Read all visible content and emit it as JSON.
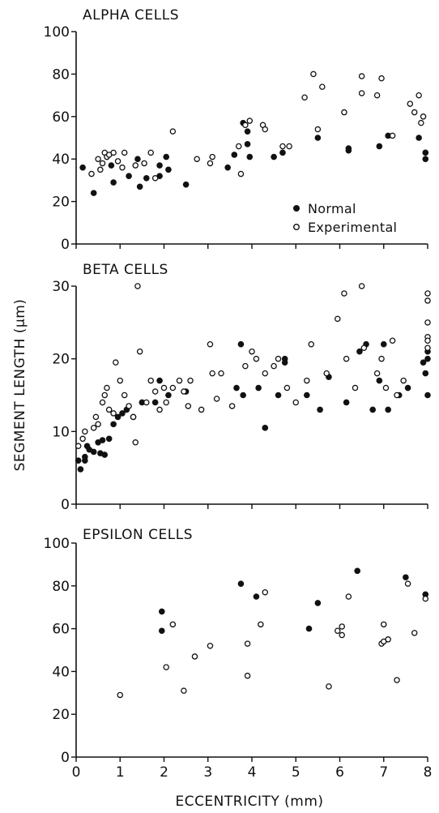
{
  "chart_data": [
    {
      "type": "scatter",
      "title": "ALPHA CELLS",
      "xlim": [
        0,
        8
      ],
      "ylim": [
        0,
        100
      ],
      "yticks": [
        0,
        20,
        40,
        60,
        80,
        100
      ],
      "legend": {
        "placement": "bottom-right",
        "entries": [
          "Normal",
          "Experimental"
        ]
      },
      "series": [
        {
          "name": "Normal",
          "marker": "filled-circle",
          "color": "#111111",
          "points": [
            [
              0.15,
              36
            ],
            [
              0.4,
              24
            ],
            [
              0.8,
              37
            ],
            [
              0.85,
              29
            ],
            [
              1.2,
              32
            ],
            [
              1.4,
              40
            ],
            [
              1.45,
              27
            ],
            [
              1.6,
              31
            ],
            [
              1.9,
              32
            ],
            [
              1.9,
              37
            ],
            [
              2.05,
              41
            ],
            [
              2.1,
              35
            ],
            [
              2.5,
              28
            ],
            [
              3.45,
              36
            ],
            [
              3.6,
              42
            ],
            [
              3.8,
              57
            ],
            [
              3.9,
              53
            ],
            [
              3.9,
              47
            ],
            [
              3.95,
              41
            ],
            [
              4.5,
              41
            ],
            [
              4.7,
              43
            ],
            [
              5.5,
              50
            ],
            [
              6.2,
              44
            ],
            [
              6.2,
              45
            ],
            [
              6.9,
              46
            ],
            [
              7.1,
              51
            ],
            [
              7.8,
              50
            ],
            [
              7.95,
              43
            ],
            [
              7.95,
              40
            ]
          ]
        },
        {
          "name": "Experimental",
          "marker": "open-circle",
          "color": "#111111",
          "points": [
            [
              0.35,
              33
            ],
            [
              0.5,
              40
            ],
            [
              0.55,
              35
            ],
            [
              0.6,
              38
            ],
            [
              0.65,
              43
            ],
            [
              0.7,
              41
            ],
            [
              0.75,
              42
            ],
            [
              0.85,
              43
            ],
            [
              0.95,
              39
            ],
            [
              1.05,
              36
            ],
            [
              1.1,
              43
            ],
            [
              1.35,
              37
            ],
            [
              1.55,
              38
            ],
            [
              1.7,
              43
            ],
            [
              1.8,
              31
            ],
            [
              2.2,
              53
            ],
            [
              2.75,
              40
            ],
            [
              3.05,
              38
            ],
            [
              3.1,
              41
            ],
            [
              3.7,
              46
            ],
            [
              3.75,
              33
            ],
            [
              3.85,
              56
            ],
            [
              3.95,
              58
            ],
            [
              4.25,
              56
            ],
            [
              4.3,
              54
            ],
            [
              4.7,
              46
            ],
            [
              4.85,
              46
            ],
            [
              5.2,
              69
            ],
            [
              5.4,
              80
            ],
            [
              5.5,
              54
            ],
            [
              5.6,
              74
            ],
            [
              6.1,
              62
            ],
            [
              6.5,
              71
            ],
            [
              6.5,
              79
            ],
            [
              6.85,
              70
            ],
            [
              6.95,
              78
            ],
            [
              7.2,
              51
            ],
            [
              7.6,
              66
            ],
            [
              7.7,
              62
            ],
            [
              7.8,
              70
            ],
            [
              7.85,
              57
            ],
            [
              7.9,
              60
            ]
          ]
        }
      ]
    },
    {
      "type": "scatter",
      "title": "BETA CELLS",
      "xlim": [
        0,
        8
      ],
      "ylim": [
        0,
        30
      ],
      "yticks": [
        0,
        10,
        20,
        30
      ],
      "series": [
        {
          "name": "Normal",
          "marker": "filled-circle",
          "color": "#111111",
          "points": [
            [
              0.05,
              6
            ],
            [
              0.1,
              4.8
            ],
            [
              0.2,
              6.5
            ],
            [
              0.2,
              6
            ],
            [
              0.25,
              8
            ],
            [
              0.3,
              7.5
            ],
            [
              0.4,
              7.2
            ],
            [
              0.5,
              8.5
            ],
            [
              0.55,
              7
            ],
            [
              0.6,
              8.8
            ],
            [
              0.65,
              6.8
            ],
            [
              0.75,
              9
            ],
            [
              0.85,
              11
            ],
            [
              0.95,
              12
            ],
            [
              1.05,
              12.5
            ],
            [
              1.15,
              13
            ],
            [
              1.3,
              12
            ],
            [
              1.5,
              14
            ],
            [
              1.8,
              14
            ],
            [
              1.9,
              17
            ],
            [
              2.1,
              15
            ],
            [
              2.5,
              15.5
            ],
            [
              3.65,
              16
            ],
            [
              3.75,
              22
            ],
            [
              3.8,
              15
            ],
            [
              4.15,
              16
            ],
            [
              4.3,
              10.5
            ],
            [
              4.6,
              15
            ],
            [
              4.75,
              20
            ],
            [
              4.75,
              19.5
            ],
            [
              5.25,
              15
            ],
            [
              5.55,
              13
            ],
            [
              5.75,
              17.5
            ],
            [
              6.15,
              14
            ],
            [
              6.45,
              21
            ],
            [
              6.6,
              22
            ],
            [
              6.75,
              13
            ],
            [
              6.9,
              17
            ],
            [
              7.0,
              22
            ],
            [
              7.1,
              13
            ],
            [
              7.35,
              15
            ],
            [
              7.55,
              16
            ],
            [
              7.9,
              19.5
            ],
            [
              7.95,
              18
            ],
            [
              8.0,
              21
            ],
            [
              8.0,
              20
            ],
            [
              8.0,
              15
            ]
          ]
        },
        {
          "name": "Experimental",
          "marker": "open-circle",
          "color": "#111111",
          "points": [
            [
              0.05,
              8
            ],
            [
              0.15,
              9
            ],
            [
              0.2,
              10
            ],
            [
              0.4,
              10.5
            ],
            [
              0.45,
              12
            ],
            [
              0.5,
              11
            ],
            [
              0.6,
              14
            ],
            [
              0.65,
              15
            ],
            [
              0.7,
              16
            ],
            [
              0.75,
              13
            ],
            [
              0.85,
              12.5
            ],
            [
              0.9,
              19.5
            ],
            [
              1.0,
              17
            ],
            [
              1.1,
              15
            ],
            [
              1.2,
              13.5
            ],
            [
              1.3,
              12
            ],
            [
              1.35,
              8.5
            ],
            [
              1.4,
              30
            ],
            [
              1.45,
              21
            ],
            [
              1.6,
              14
            ],
            [
              1.7,
              17
            ],
            [
              1.8,
              15.5
            ],
            [
              1.9,
              13
            ],
            [
              2.0,
              16
            ],
            [
              2.05,
              14
            ],
            [
              2.2,
              16
            ],
            [
              2.35,
              17
            ],
            [
              2.45,
              15.5
            ],
            [
              2.55,
              13.5
            ],
            [
              2.6,
              17
            ],
            [
              2.85,
              13
            ],
            [
              3.05,
              22
            ],
            [
              3.1,
              18
            ],
            [
              3.2,
              14.5
            ],
            [
              3.3,
              18
            ],
            [
              3.55,
              13.5
            ],
            [
              3.85,
              19
            ],
            [
              4.0,
              21
            ],
            [
              4.1,
              20
            ],
            [
              4.3,
              18
            ],
            [
              4.5,
              19
            ],
            [
              4.6,
              20
            ],
            [
              4.8,
              16
            ],
            [
              5.0,
              14
            ],
            [
              5.25,
              17
            ],
            [
              5.35,
              22
            ],
            [
              5.7,
              18
            ],
            [
              5.95,
              25.5
            ],
            [
              6.1,
              29
            ],
            [
              6.15,
              20
            ],
            [
              6.35,
              16
            ],
            [
              6.5,
              30
            ],
            [
              6.55,
              21.5
            ],
            [
              6.85,
              18
            ],
            [
              6.95,
              20
            ],
            [
              7.05,
              16
            ],
            [
              7.2,
              22.5
            ],
            [
              7.3,
              15
            ],
            [
              7.45,
              17
            ],
            [
              8.0,
              29
            ],
            [
              8.0,
              28
            ],
            [
              8.0,
              25
            ],
            [
              8.0,
              23
            ],
            [
              8.0,
              22.5
            ],
            [
              8.0,
              21.5
            ]
          ]
        }
      ]
    },
    {
      "type": "scatter",
      "title": "EPSILON CELLS",
      "xlim": [
        0,
        8
      ],
      "ylim": [
        0,
        100
      ],
      "yticks": [
        0,
        20,
        40,
        60,
        80,
        100
      ],
      "series": [
        {
          "name": "Normal",
          "marker": "filled-circle",
          "color": "#111111",
          "points": [
            [
              1.95,
              68
            ],
            [
              1.95,
              59
            ],
            [
              3.75,
              81
            ],
            [
              4.1,
              75
            ],
            [
              5.3,
              60
            ],
            [
              5.5,
              72
            ],
            [
              6.4,
              87
            ],
            [
              7.5,
              84
            ],
            [
              7.95,
              76
            ]
          ]
        },
        {
          "name": "Experimental",
          "marker": "open-circle",
          "color": "#111111",
          "points": [
            [
              1.0,
              29
            ],
            [
              2.05,
              42
            ],
            [
              2.2,
              62
            ],
            [
              2.45,
              31
            ],
            [
              2.7,
              47
            ],
            [
              3.05,
              52
            ],
            [
              3.9,
              53
            ],
            [
              3.9,
              38
            ],
            [
              4.2,
              62
            ],
            [
              4.3,
              77
            ],
            [
              5.75,
              33
            ],
            [
              5.95,
              59
            ],
            [
              6.05,
              61
            ],
            [
              6.05,
              57
            ],
            [
              6.2,
              75
            ],
            [
              6.95,
              53
            ],
            [
              7.0,
              62
            ],
            [
              7.0,
              54
            ],
            [
              7.1,
              55
            ],
            [
              7.3,
              36
            ],
            [
              7.55,
              81
            ],
            [
              7.7,
              58
            ],
            [
              7.95,
              74
            ]
          ]
        }
      ]
    }
  ],
  "x_axis": {
    "label": "ECCENTRICITY (mm)",
    "ticks": [
      0,
      1,
      2,
      3,
      4,
      5,
      6,
      7,
      8
    ]
  },
  "y_axis_label": "SEGMENT LENGTH (μm)"
}
